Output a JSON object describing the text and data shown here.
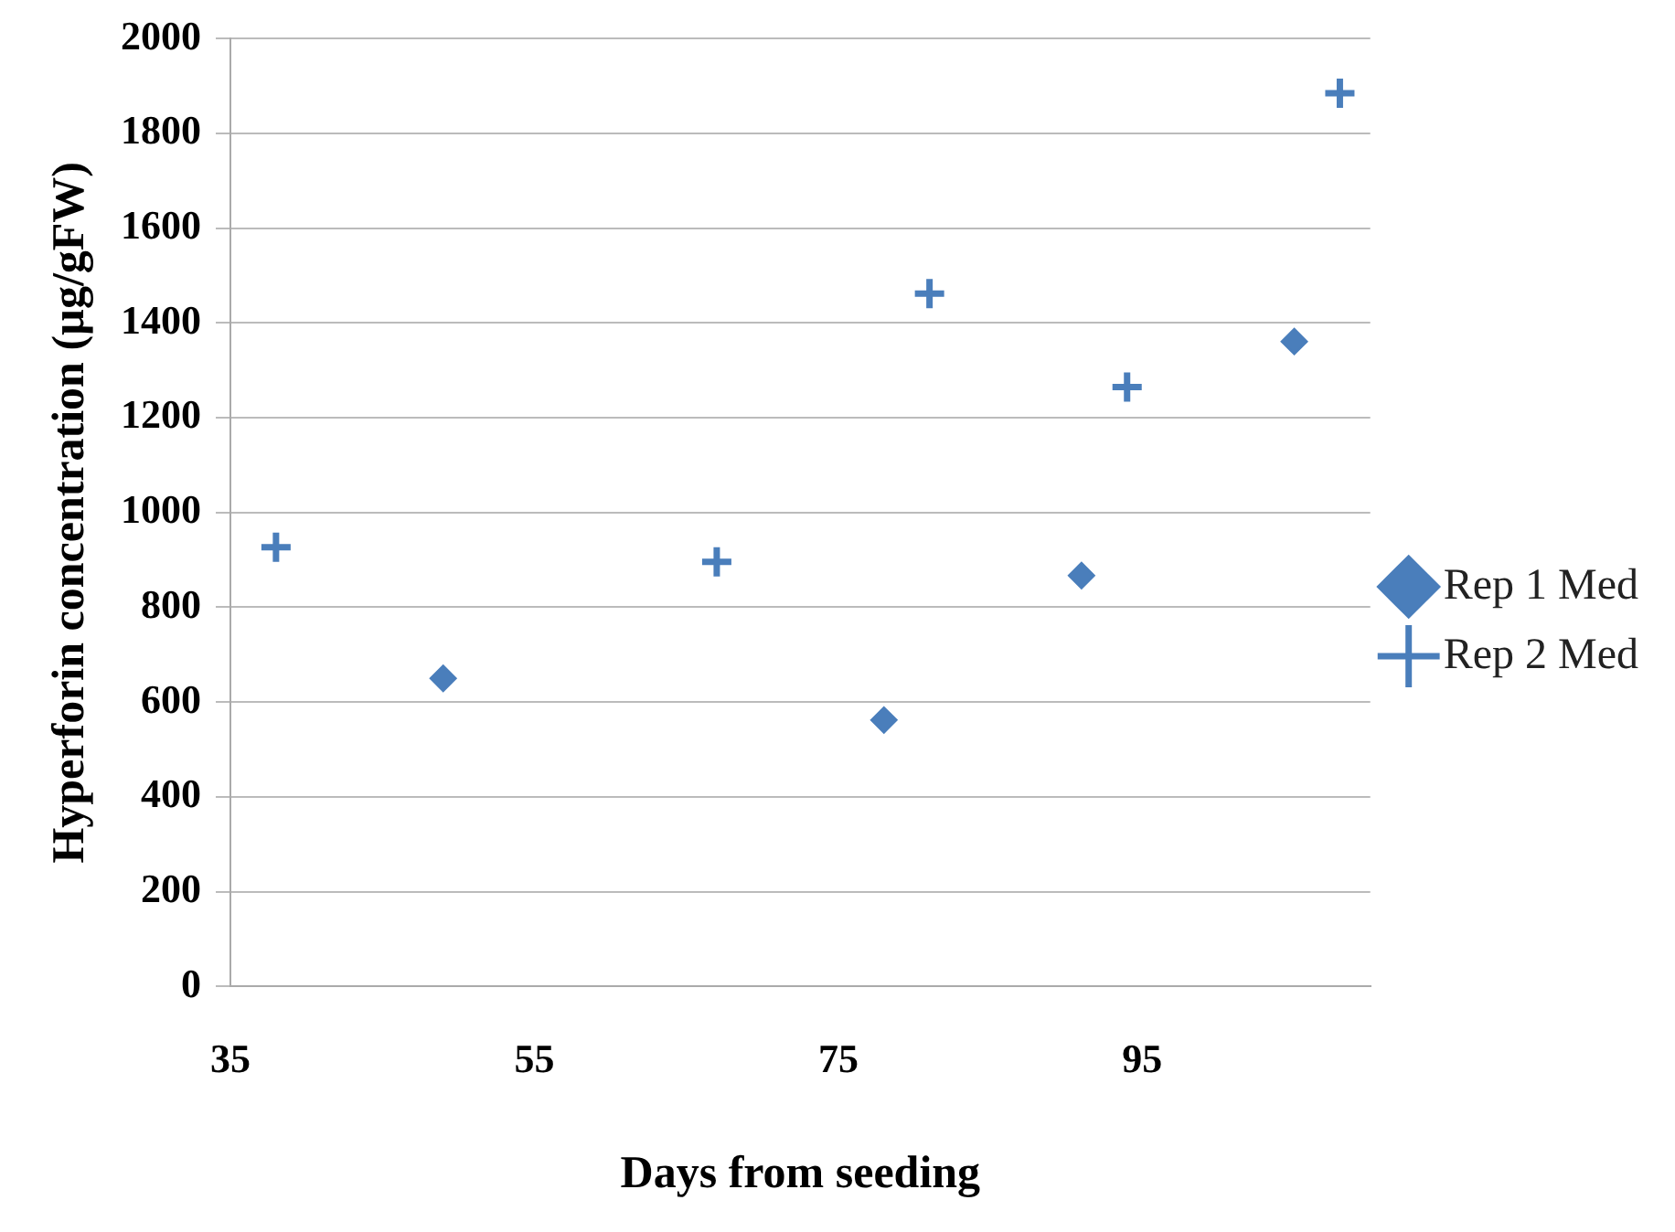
{
  "chart_data": {
    "type": "scatter",
    "xlabel": "Days from seeding",
    "ylabel": "Hyperforin concentration (µg/gFW)",
    "xlim": [
      35,
      110
    ],
    "xticks": [
      35,
      55,
      75,
      95
    ],
    "ylim": [
      0,
      2000
    ],
    "yticks": [
      0,
      200,
      400,
      600,
      800,
      1000,
      1200,
      1400,
      1600,
      1800,
      2000
    ],
    "grid": "y",
    "legend": "right",
    "series": [
      {
        "name": "Rep 1 Med",
        "color": "#4a7ebb",
        "marker": "diamond",
        "x": [
          49,
          78,
          91,
          105
        ],
        "values": [
          650,
          562,
          867,
          1361
        ]
      },
      {
        "name": "Rep 2 Med",
        "color": "#4a7ebb",
        "marker": "cross",
        "x": [
          38,
          67,
          81,
          94,
          108
        ],
        "values": [
          927,
          896,
          1462,
          1265,
          1885
        ]
      }
    ]
  }
}
